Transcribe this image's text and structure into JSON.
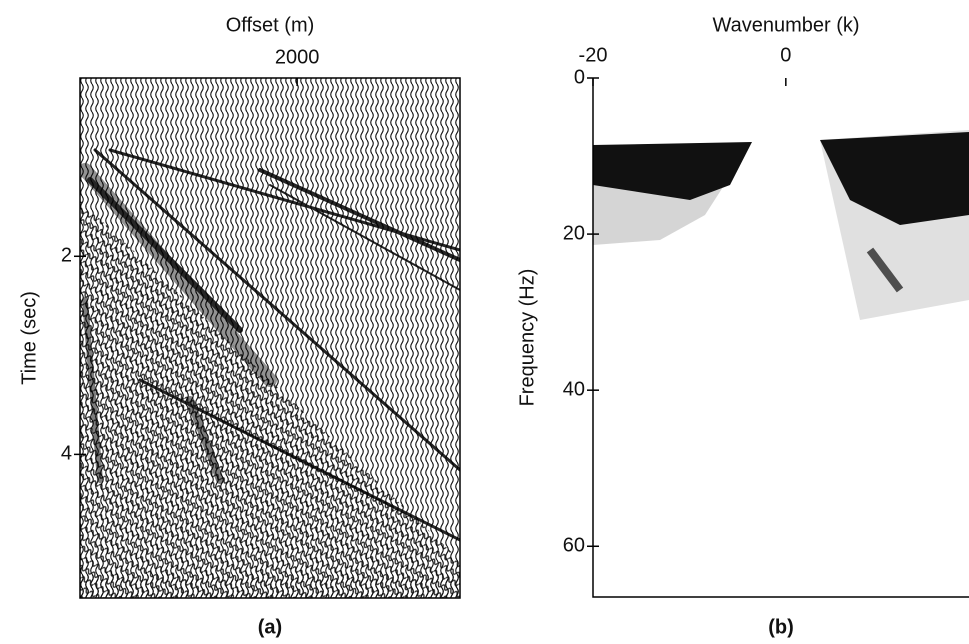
{
  "chart_data": [
    {
      "type": "image",
      "caption": "(a)",
      "xlabel": "Offset (m)",
      "ylabel": "Time (sec)",
      "xlim": [
        400,
        3200
      ],
      "xticks": [
        2000
      ],
      "ylim": [
        5.45,
        0.2
      ],
      "yticks": [
        2,
        4
      ]
    },
    {
      "type": "image",
      "caption": "(b)",
      "xlabel": "Wavenumber (k)",
      "ylabel": "Frequency (Hz)",
      "xlim": [
        -20,
        19
      ],
      "xticks": [
        -20,
        0
      ],
      "ylim": [
        66.5,
        0
      ],
      "yticks": [
        0,
        20,
        40,
        60
      ]
    }
  ]
}
